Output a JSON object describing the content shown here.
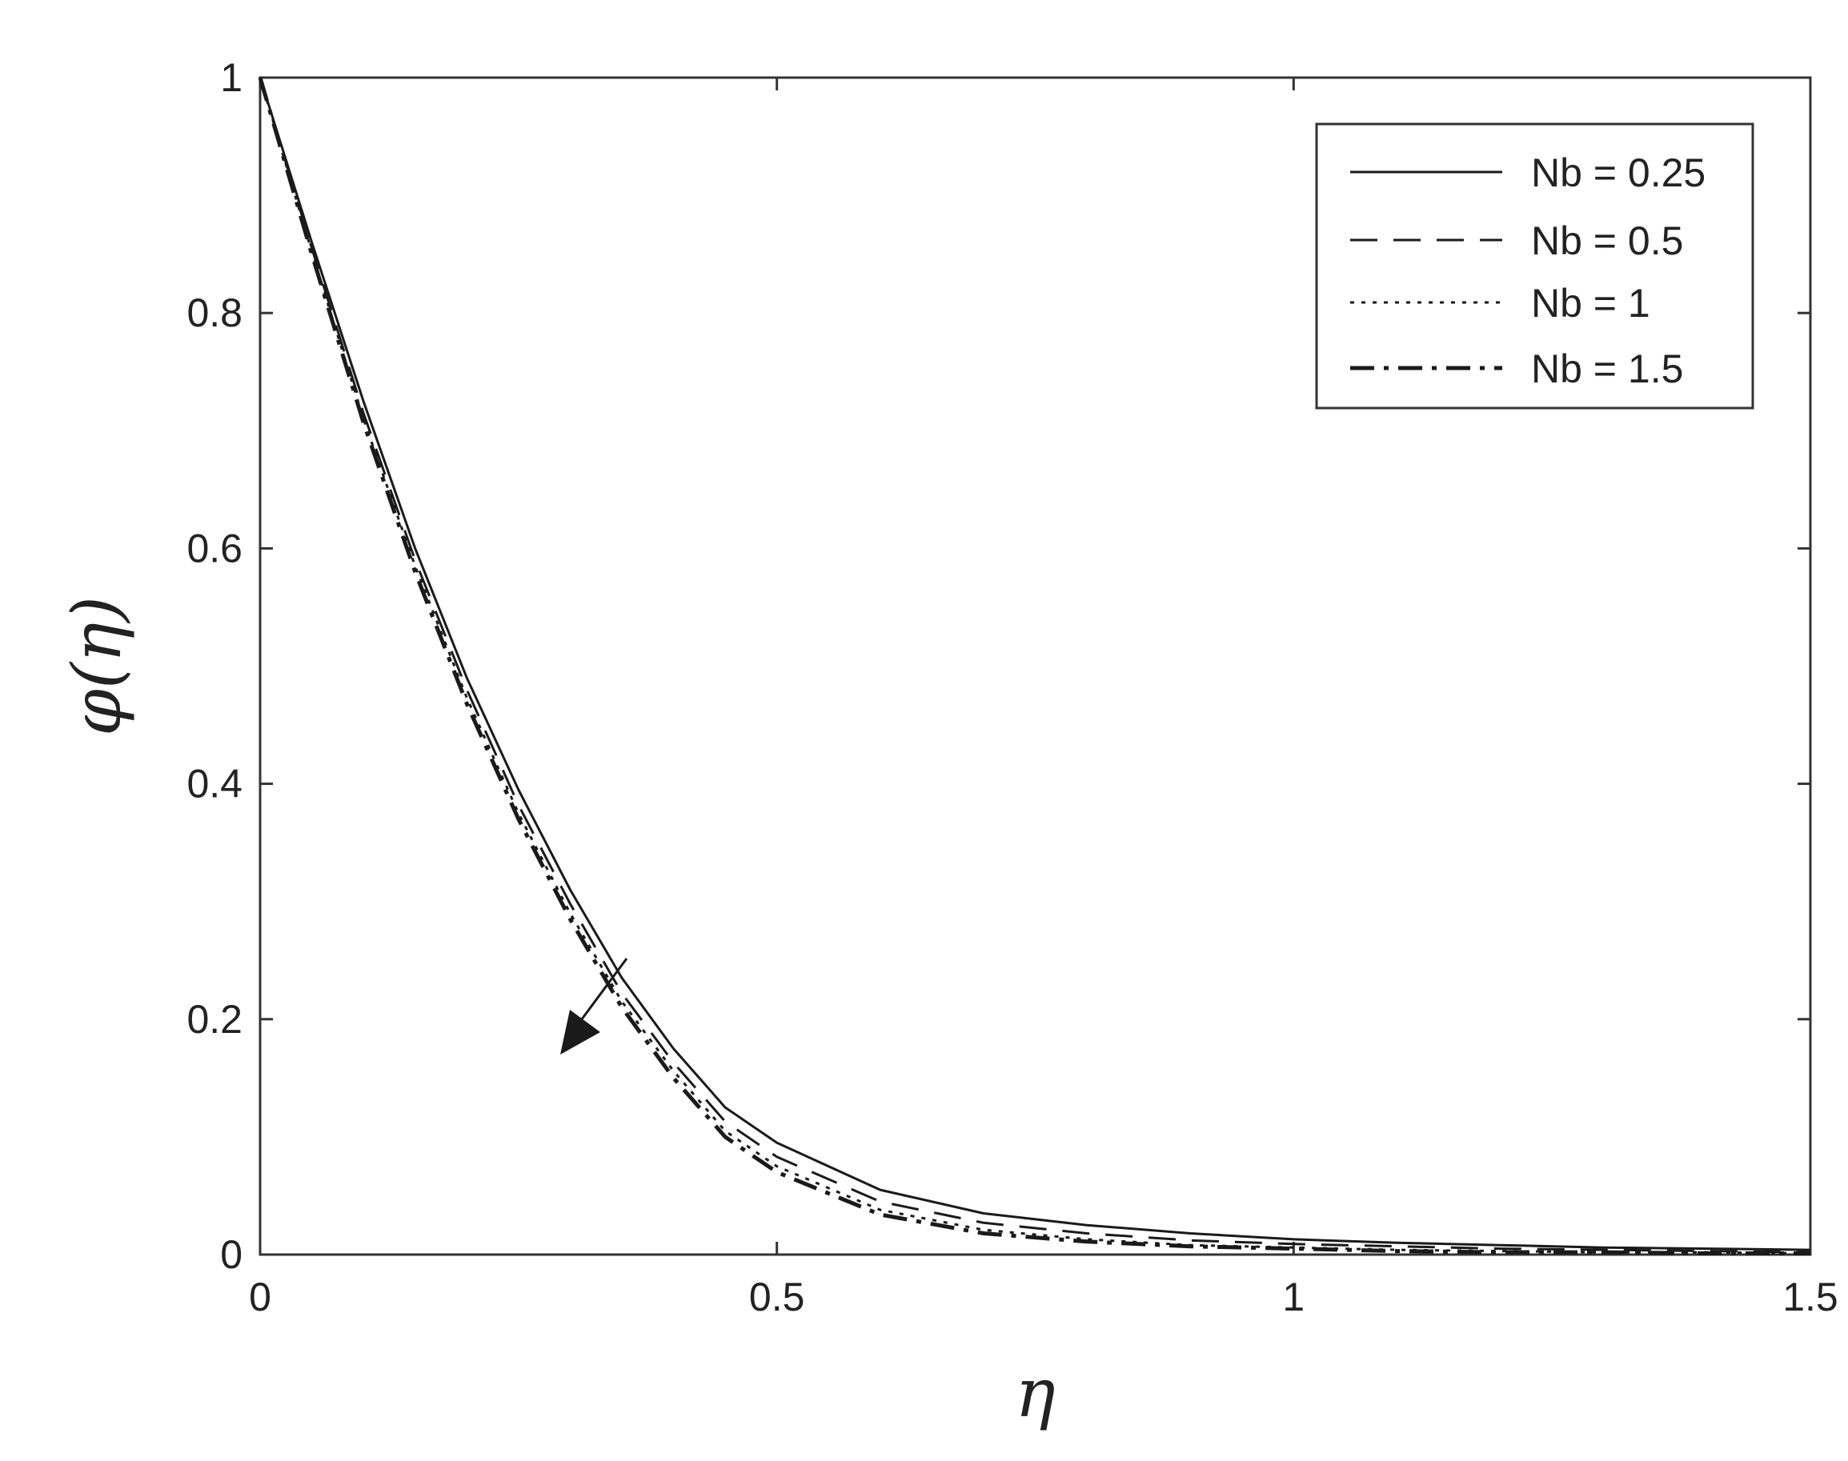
{
  "chart_data": {
    "type": "line",
    "title": "",
    "xlabel": "η",
    "ylabel": "φ(η)",
    "xlim": [
      0,
      1.5
    ],
    "ylim": [
      0,
      1
    ],
    "xticks": [
      "0",
      "0.5",
      "1",
      "1.5"
    ],
    "yticks": [
      "0",
      "0.2",
      "0.4",
      "0.6",
      "0.8",
      "1"
    ],
    "grid": false,
    "legend_position": "top-right",
    "x": [
      0,
      0.05,
      0.1,
      0.15,
      0.2,
      0.25,
      0.3,
      0.35,
      0.4,
      0.45,
      0.5,
      0.6,
      0.7,
      0.8,
      0.9,
      1.0,
      1.1,
      1.2,
      1.3,
      1.4,
      1.5
    ],
    "series": [
      {
        "name": "Nb = 0.25",
        "style": "solid",
        "values": [
          1.0,
          0.86,
          0.725,
          0.6,
          0.49,
          0.395,
          0.31,
          0.235,
          0.175,
          0.125,
          0.095,
          0.055,
          0.035,
          0.025,
          0.018,
          0.013,
          0.01,
          0.008,
          0.006,
          0.005,
          0.004
        ]
      },
      {
        "name": "Nb = 0.5",
        "style": "dashed",
        "values": [
          1.0,
          0.855,
          0.715,
          0.59,
          0.48,
          0.382,
          0.298,
          0.222,
          0.163,
          0.113,
          0.083,
          0.045,
          0.027,
          0.018,
          0.012,
          0.009,
          0.007,
          0.005,
          0.004,
          0.003,
          0.002
        ]
      },
      {
        "name": "Nb = 1",
        "style": "dotted",
        "values": [
          1.0,
          0.852,
          0.71,
          0.585,
          0.473,
          0.375,
          0.29,
          0.215,
          0.156,
          0.105,
          0.075,
          0.038,
          0.021,
          0.013,
          0.008,
          0.006,
          0.004,
          0.003,
          0.002,
          0.002,
          0.001
        ]
      },
      {
        "name": "Nb = 1.5",
        "style": "dashdot",
        "values": [
          1.0,
          0.85,
          0.707,
          0.58,
          0.468,
          0.37,
          0.285,
          0.21,
          0.15,
          0.1,
          0.07,
          0.034,
          0.018,
          0.011,
          0.007,
          0.005,
          0.003,
          0.002,
          0.002,
          0.001,
          0.001
        ]
      }
    ],
    "annotation": "arrow",
    "colors": {
      "line": "#1a1a1a",
      "axis": "#333333"
    }
  }
}
